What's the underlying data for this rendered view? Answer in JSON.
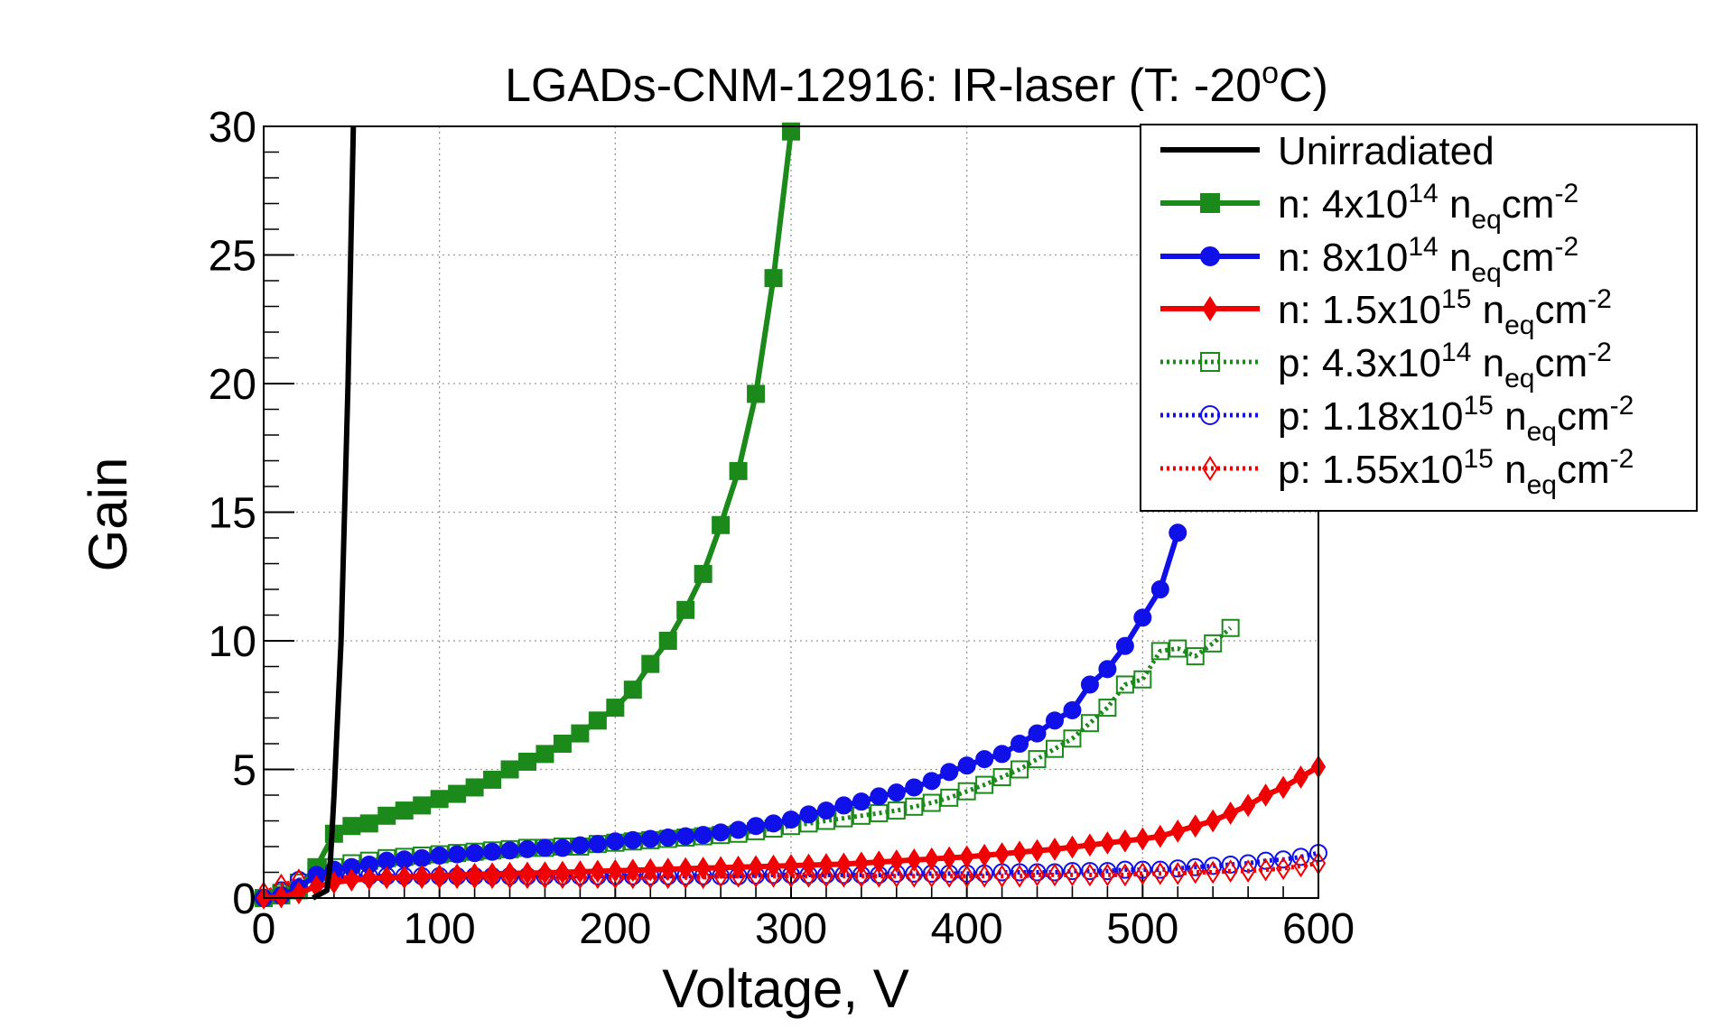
{
  "chart_data": {
    "type": "line",
    "title_main": "LGADs-CNM-12916: IR-laser (T: -20",
    "title_deg": "o",
    "title_end": "C)",
    "xlabel": "Voltage, V",
    "ylabel": "Gain",
    "xlim": [
      0,
      600
    ],
    "ylim": [
      0,
      30
    ],
    "x_ticks": [
      0,
      100,
      200,
      300,
      400,
      500,
      600
    ],
    "y_ticks": [
      0,
      5,
      10,
      15,
      20,
      25,
      30
    ],
    "grid": true,
    "legend_position": "top-right",
    "series": [
      {
        "name": "Unirradiated",
        "legend": {
          "prefix": "Unirradiated",
          "coef": "",
          "exp": "",
          "sub": "",
          "unit": "",
          "unit_exp": ""
        },
        "color": "#000000",
        "line": "solid",
        "marker": "none",
        "x": [
          28,
          36,
          38,
          40,
          44,
          48,
          51
        ],
        "y": [
          0,
          0.3,
          1.5,
          4,
          10,
          20,
          30
        ]
      },
      {
        "name": "n: 4x10^14 neq cm^-2",
        "legend": {
          "prefix": "n: 4x10",
          "exp": "14",
          "sub": "eq",
          "unit": "cm",
          "unit_exp": "-2"
        },
        "color": "#1b8a1b",
        "line": "solid",
        "marker": "square-filled",
        "x": [
          0,
          10,
          20,
          30,
          40,
          50,
          60,
          70,
          80,
          90,
          100,
          110,
          120,
          130,
          140,
          150,
          160,
          170,
          180,
          190,
          200,
          210,
          220,
          230,
          240,
          250,
          260,
          270,
          280,
          290,
          300
        ],
        "y": [
          0,
          0.1,
          0.3,
          1.2,
          2.5,
          2.8,
          2.9,
          3.2,
          3.4,
          3.6,
          3.85,
          4.05,
          4.3,
          4.6,
          5.0,
          5.3,
          5.6,
          6.0,
          6.4,
          6.9,
          7.4,
          8.1,
          9.1,
          10.0,
          11.2,
          12.6,
          14.5,
          16.6,
          19.6,
          24.1,
          29.8
        ]
      },
      {
        "name": "n: 8x10^14 neq cm^-2",
        "legend": {
          "prefix": "n: 8x10",
          "exp": "14",
          "sub": "eq",
          "unit": "cm",
          "unit_exp": "-2"
        },
        "color": "#1010e8",
        "line": "solid",
        "marker": "circle-filled",
        "x": [
          0,
          10,
          20,
          30,
          40,
          50,
          60,
          70,
          80,
          90,
          100,
          110,
          120,
          130,
          140,
          150,
          160,
          170,
          180,
          190,
          200,
          210,
          220,
          230,
          240,
          250,
          260,
          270,
          280,
          290,
          300,
          310,
          320,
          330,
          340,
          350,
          360,
          370,
          380,
          390,
          400,
          410,
          420,
          430,
          440,
          450,
          460,
          470,
          480,
          490,
          500,
          510,
          520
        ],
        "y": [
          0,
          0.1,
          0.4,
          0.9,
          1.1,
          1.2,
          1.3,
          1.45,
          1.5,
          1.55,
          1.65,
          1.7,
          1.75,
          1.8,
          1.85,
          1.9,
          1.95,
          1.95,
          2.05,
          2.1,
          2.2,
          2.25,
          2.3,
          2.35,
          2.4,
          2.45,
          2.55,
          2.65,
          2.8,
          2.9,
          3.05,
          3.25,
          3.4,
          3.6,
          3.75,
          3.95,
          4.1,
          4.3,
          4.55,
          4.9,
          5.15,
          5.4,
          5.6,
          6.0,
          6.4,
          6.9,
          7.3,
          8.3,
          8.9,
          9.8,
          10.9,
          12.0,
          14.2
        ]
      },
      {
        "name": "n: 1.5x10^15 neq cm^-2",
        "legend": {
          "prefix": "n: 1.5x10",
          "exp": "15",
          "sub": "eq",
          "unit": "cm",
          "unit_exp": "-2"
        },
        "color": "#f00000",
        "line": "solid",
        "marker": "diamond-filled",
        "x": [
          0,
          10,
          20,
          30,
          40,
          50,
          60,
          70,
          80,
          90,
          100,
          110,
          120,
          130,
          140,
          150,
          160,
          170,
          180,
          190,
          200,
          210,
          220,
          230,
          240,
          250,
          260,
          270,
          280,
          290,
          300,
          310,
          320,
          330,
          340,
          350,
          360,
          370,
          380,
          390,
          400,
          410,
          420,
          430,
          440,
          450,
          460,
          470,
          480,
          490,
          500,
          510,
          520,
          530,
          540,
          550,
          560,
          570,
          580,
          590,
          600
        ],
        "y": [
          0,
          0.05,
          0.2,
          0.45,
          0.6,
          0.7,
          0.75,
          0.8,
          0.82,
          0.85,
          0.87,
          0.9,
          0.92,
          0.94,
          0.96,
          0.97,
          0.98,
          1.0,
          1.02,
          1.04,
          1.06,
          1.08,
          1.1,
          1.12,
          1.14,
          1.16,
          1.18,
          1.2,
          1.22,
          1.24,
          1.26,
          1.28,
          1.3,
          1.32,
          1.36,
          1.4,
          1.44,
          1.48,
          1.52,
          1.56,
          1.6,
          1.66,
          1.72,
          1.78,
          1.84,
          1.9,
          1.98,
          2.06,
          2.14,
          2.22,
          2.3,
          2.4,
          2.6,
          2.8,
          3.0,
          3.3,
          3.6,
          4.0,
          4.3,
          4.7,
          5.1
        ]
      },
      {
        "name": "p: 4.3x10^14 neq cm^-2",
        "legend": {
          "prefix": "p: 4.3x10",
          "exp": "14",
          "sub": "eq",
          "unit": "cm",
          "unit_exp": "-2"
        },
        "color": "#1b8a1b",
        "line": "dotted",
        "marker": "square-open",
        "x": [
          0,
          10,
          20,
          30,
          40,
          50,
          60,
          70,
          80,
          90,
          100,
          110,
          120,
          130,
          140,
          150,
          160,
          170,
          180,
          190,
          200,
          210,
          220,
          230,
          240,
          250,
          260,
          270,
          280,
          290,
          300,
          310,
          320,
          330,
          340,
          350,
          360,
          370,
          380,
          390,
          400,
          410,
          420,
          430,
          440,
          450,
          460,
          470,
          480,
          490,
          500,
          510,
          520,
          530,
          540,
          550
        ],
        "y": [
          0,
          0.2,
          0.6,
          1.0,
          1.2,
          1.35,
          1.45,
          1.55,
          1.6,
          1.65,
          1.7,
          1.75,
          1.8,
          1.85,
          1.9,
          1.95,
          1.95,
          2.0,
          2.0,
          2.1,
          2.15,
          2.2,
          2.25,
          2.3,
          2.35,
          2.4,
          2.45,
          2.5,
          2.6,
          2.7,
          2.8,
          2.9,
          3.0,
          3.1,
          3.2,
          3.3,
          3.4,
          3.55,
          3.7,
          3.9,
          4.15,
          4.4,
          4.7,
          5.0,
          5.4,
          5.8,
          6.2,
          6.8,
          7.4,
          8.3,
          8.5,
          9.6,
          9.7,
          9.4,
          9.9,
          10.5
        ]
      },
      {
        "name": "p: 1.18x10^15 neq cm^-2",
        "legend": {
          "prefix": "p: 1.18x10",
          "exp": "15",
          "sub": "eq",
          "unit": "cm",
          "unit_exp": "-2"
        },
        "color": "#1010e8",
        "line": "dotted",
        "marker": "circle-open",
        "x": [
          0,
          10,
          20,
          30,
          40,
          50,
          60,
          70,
          80,
          90,
          100,
          110,
          120,
          130,
          140,
          150,
          160,
          170,
          180,
          190,
          200,
          210,
          220,
          230,
          240,
          250,
          260,
          270,
          280,
          290,
          300,
          310,
          320,
          330,
          340,
          350,
          360,
          370,
          380,
          390,
          400,
          410,
          420,
          430,
          440,
          450,
          460,
          470,
          480,
          490,
          500,
          510,
          520,
          530,
          540,
          550,
          560,
          570,
          580,
          590,
          600
        ],
        "y": [
          0,
          0.3,
          0.7,
          0.85,
          0.85,
          0.85,
          0.85,
          0.85,
          0.85,
          0.85,
          0.85,
          0.85,
          0.85,
          0.85,
          0.85,
          0.85,
          0.85,
          0.85,
          0.85,
          0.85,
          0.85,
          0.85,
          0.85,
          0.85,
          0.85,
          0.85,
          0.85,
          0.85,
          0.88,
          0.9,
          0.9,
          0.9,
          0.9,
          0.9,
          0.9,
          0.9,
          0.95,
          0.95,
          0.95,
          0.95,
          0.95,
          0.95,
          1.0,
          1.0,
          1.0,
          1.0,
          1.05,
          1.05,
          1.05,
          1.1,
          1.1,
          1.1,
          1.15,
          1.2,
          1.25,
          1.3,
          1.35,
          1.45,
          1.5,
          1.6,
          1.75
        ]
      },
      {
        "name": "p: 1.55x10^15 neq cm^-2",
        "legend": {
          "prefix": "p: 1.55x10",
          "exp": "15",
          "sub": "eq",
          "unit": "cm",
          "unit_exp": "-2"
        },
        "color": "#f00000",
        "line": "dotted",
        "marker": "diamond-open",
        "x": [
          0,
          10,
          20,
          30,
          40,
          50,
          60,
          70,
          80,
          90,
          100,
          110,
          120,
          130,
          140,
          150,
          160,
          170,
          180,
          190,
          200,
          210,
          220,
          230,
          240,
          250,
          260,
          270,
          280,
          290,
          300,
          310,
          320,
          330,
          340,
          350,
          360,
          370,
          380,
          390,
          400,
          410,
          420,
          430,
          440,
          450,
          460,
          470,
          480,
          490,
          500,
          510,
          520,
          530,
          540,
          550,
          560,
          570,
          580,
          590,
          600
        ],
        "y": [
          0.2,
          0.5,
          0.7,
          0.75,
          0.8,
          0.8,
          0.8,
          0.8,
          0.8,
          0.8,
          0.8,
          0.8,
          0.8,
          0.8,
          0.8,
          0.8,
          0.8,
          0.8,
          0.8,
          0.8,
          0.8,
          0.8,
          0.8,
          0.8,
          0.8,
          0.8,
          0.85,
          0.85,
          0.85,
          0.85,
          0.85,
          0.85,
          0.85,
          0.85,
          0.85,
          0.85,
          0.85,
          0.85,
          0.85,
          0.85,
          0.85,
          0.85,
          0.85,
          0.85,
          0.9,
          0.9,
          0.9,
          0.9,
          0.9,
          0.9,
          0.95,
          0.95,
          0.95,
          1.0,
          1.0,
          1.05,
          1.05,
          1.1,
          1.15,
          1.25,
          1.35
        ]
      }
    ]
  }
}
